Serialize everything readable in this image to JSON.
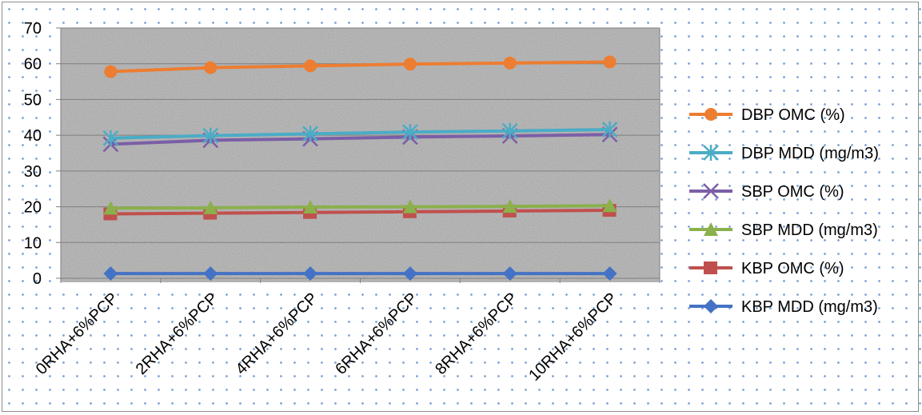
{
  "chart_data": {
    "type": "line",
    "title": "",
    "xlabel": "",
    "ylabel": "",
    "ylim": [
      0,
      70
    ],
    "yticks": [
      0,
      10,
      20,
      30,
      40,
      50,
      60,
      70
    ],
    "grid": true,
    "legend_position": "right",
    "categories": [
      "0RHA+6%PCP",
      "2RHA+6%PCP",
      "4RHA+6%PCP",
      "6RHA+6%PCP",
      "8RHA+6%PCP",
      "10RHA+6%PCP"
    ],
    "series": [
      {
        "name": "DBP OMC (%)",
        "color": "#ed7d31",
        "marker": "circle",
        "values": [
          57.8,
          58.9,
          59.4,
          59.9,
          60.2,
          60.5
        ]
      },
      {
        "name": "DBP MDD (mg/m3)",
        "color": "#4bacc6",
        "marker": "star",
        "values": [
          39.2,
          39.9,
          40.4,
          40.9,
          41.2,
          41.6
        ]
      },
      {
        "name": "SBP OMC (%)",
        "color": "#7b5ea7",
        "marker": "x",
        "values": [
          37.5,
          38.6,
          39.0,
          39.5,
          39.8,
          40.2
        ]
      },
      {
        "name": "SBP MDD (mg/m3)",
        "color": "#8bb04c",
        "marker": "triangle",
        "values": [
          19.6,
          19.7,
          19.9,
          20.0,
          20.1,
          20.3
        ]
      },
      {
        "name": "KBP OMC (%)",
        "color": "#c0504d",
        "marker": "square",
        "values": [
          18.0,
          18.2,
          18.4,
          18.6,
          18.8,
          19.0
        ]
      },
      {
        "name": "KBP MDD (mg/m3)",
        "color": "#4472c4",
        "marker": "diamond",
        "values": [
          1.3,
          1.3,
          1.3,
          1.3,
          1.3,
          1.3
        ]
      }
    ]
  }
}
